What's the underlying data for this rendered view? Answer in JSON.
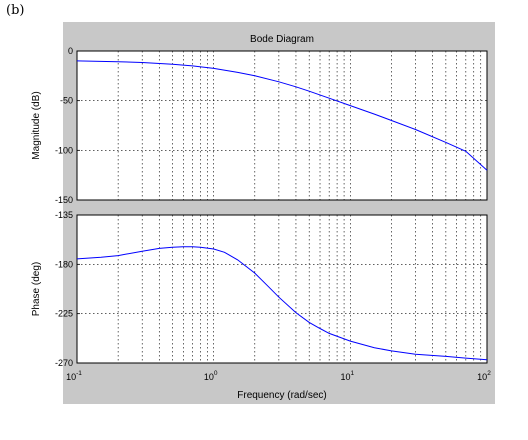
{
  "panel_label": "(b)",
  "colors": {
    "figure_bg": "#c8c8c8",
    "axes_bg": "#ffffff",
    "line": "#0000ff",
    "grid": "#000000"
  },
  "chart_data": [
    {
      "type": "line",
      "title": "Bode Diagram",
      "ylabel": "Magnitude (dB)",
      "xlabel": "",
      "xscale": "log",
      "xlim": [
        0.1,
        100
      ],
      "ylim": [
        -150,
        0
      ],
      "grid": true,
      "yticks": [
        "0",
        "-50",
        "-100",
        "-150"
      ],
      "yticks_values": [
        0,
        -50,
        -100,
        -150
      ],
      "series": [
        {
          "x": [
            0.1,
            0.2,
            0.3,
            0.5,
            0.7,
            1,
            1.5,
            2,
            3,
            4,
            5,
            7,
            10,
            15,
            20,
            30,
            50,
            70,
            100
          ],
          "values": [
            -10,
            -10.8,
            -11.6,
            -13.3,
            -15,
            -17.5,
            -21.5,
            -25,
            -31,
            -36,
            -40.5,
            -47.5,
            -55,
            -63.5,
            -70,
            -79,
            -92,
            -101,
            -120
          ]
        }
      ]
    },
    {
      "type": "line",
      "title": "",
      "ylabel": "Phase (deg)",
      "xlabel": "Frequency (rad/sec)",
      "xscale": "log",
      "xlim": [
        0.1,
        100
      ],
      "ylim": [
        -270,
        -135
      ],
      "grid": true,
      "yticks": [
        "-135",
        "-180",
        "-225",
        "-270"
      ],
      "yticks_values": [
        -135,
        -180,
        -225,
        -270
      ],
      "xticks": [
        {
          "base": "10",
          "exp": "-1"
        },
        {
          "base": "10",
          "exp": "0"
        },
        {
          "base": "10",
          "exp": "1"
        },
        {
          "base": "10",
          "exp": "2"
        }
      ],
      "xticks_values": [
        0.1,
        1,
        10,
        100
      ],
      "series": [
        {
          "x": [
            0.1,
            0.15,
            0.2,
            0.3,
            0.4,
            0.5,
            0.6,
            0.7,
            0.8,
            1,
            1.2,
            1.5,
            2,
            2.5,
            3,
            4,
            5,
            6,
            7,
            10,
            15,
            20,
            30,
            50,
            70,
            100
          ],
          "values": [
            -175,
            -173.5,
            -172,
            -168,
            -165.5,
            -164.5,
            -164,
            -164,
            -164.5,
            -166,
            -169,
            -176,
            -188,
            -200,
            -210,
            -224,
            -233,
            -238.5,
            -243,
            -250,
            -256,
            -259,
            -262,
            -264,
            -265.5,
            -267
          ]
        }
      ]
    }
  ]
}
